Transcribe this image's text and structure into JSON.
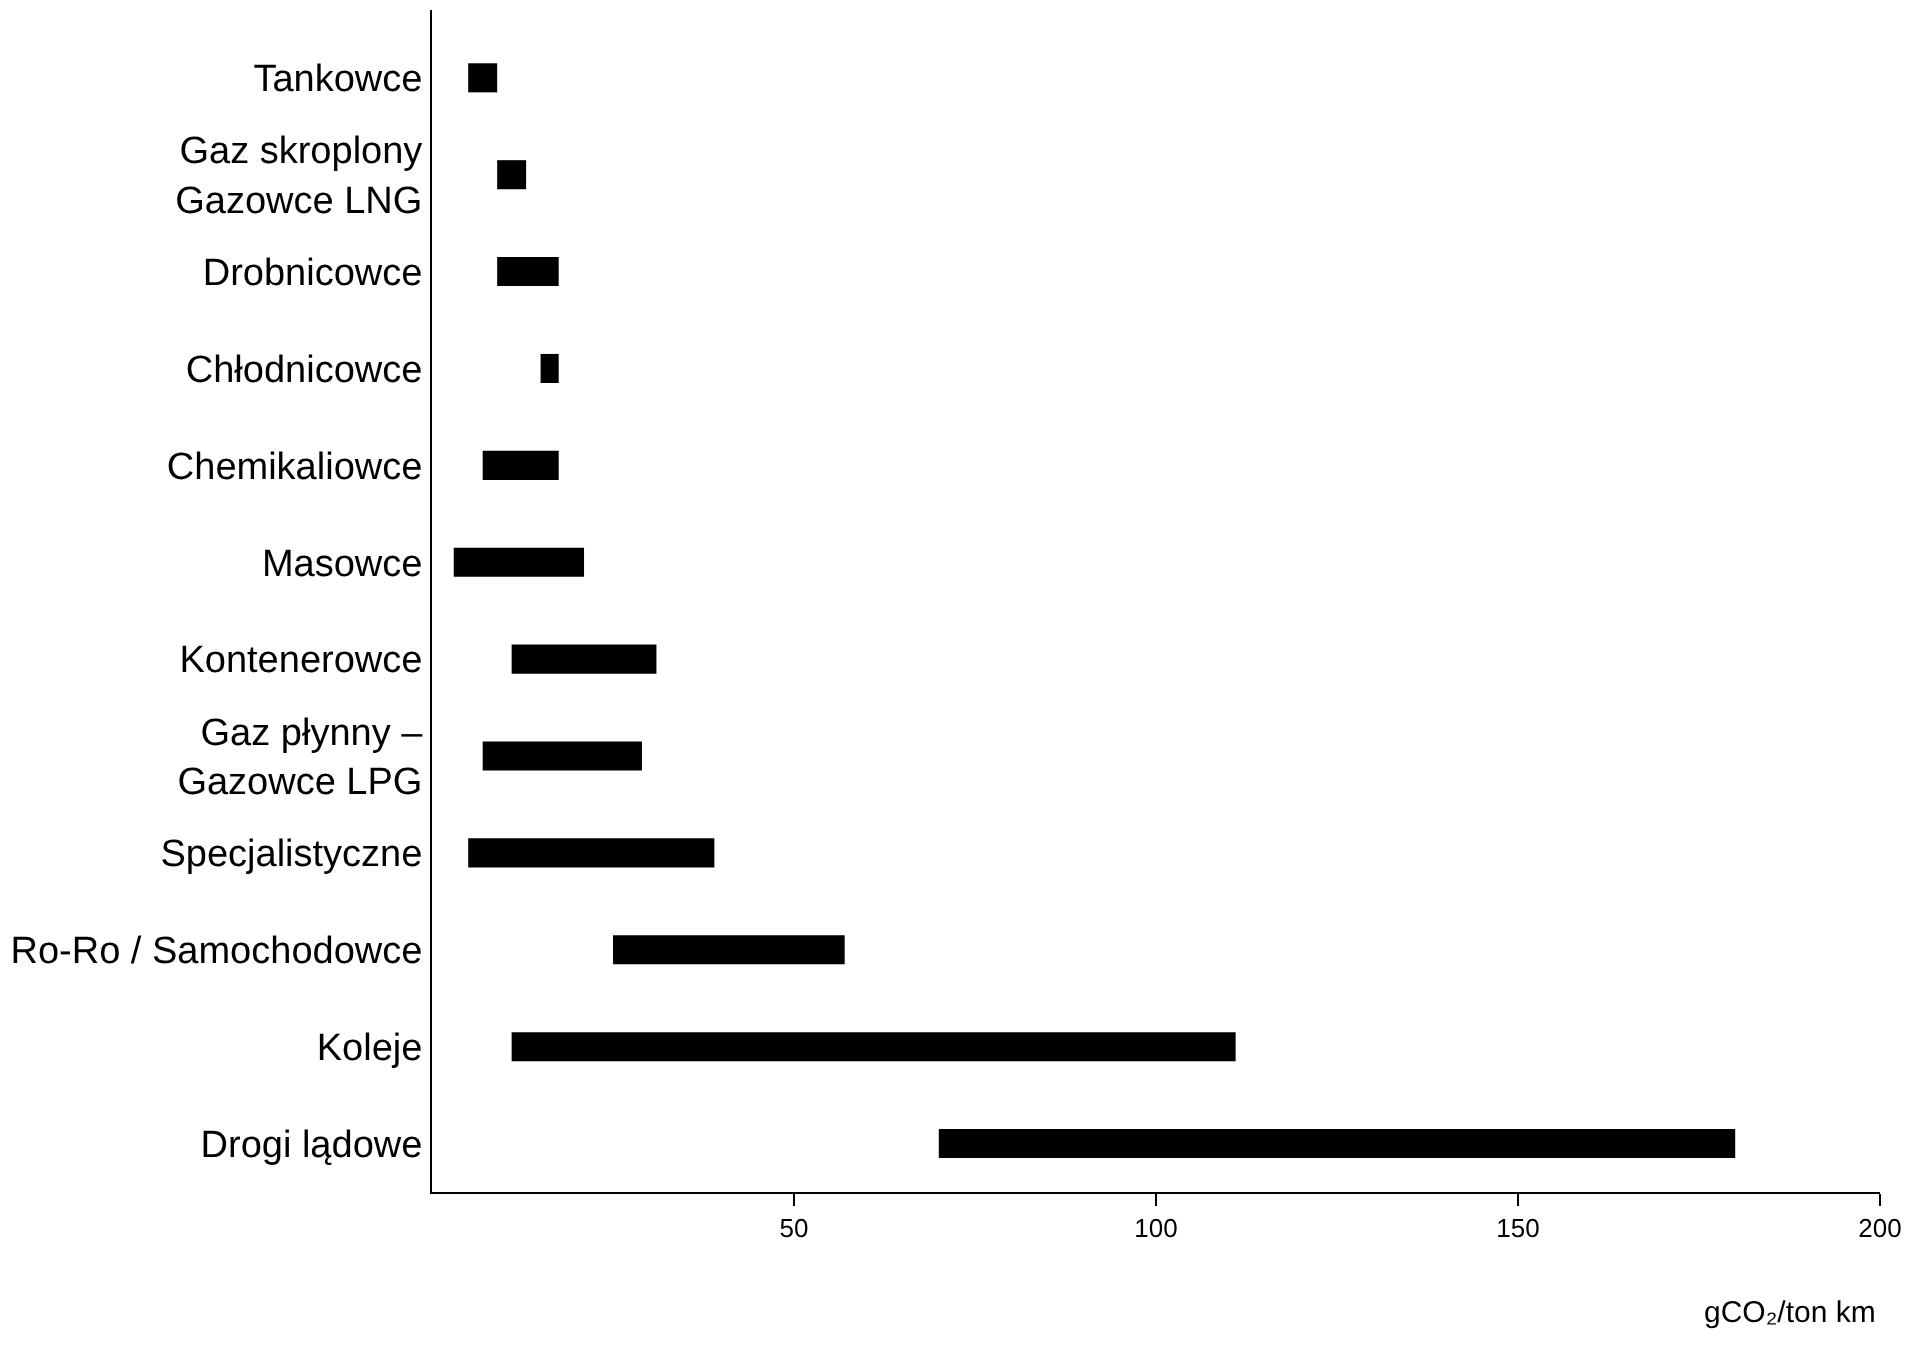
{
  "chart_data": {
    "type": "bar",
    "orientation": "horizontal",
    "xlabel": "gCO₂/ton km",
    "categories": [
      "Tankowce",
      "Gaz skroplony\nGazowce LNG",
      "Drobnicowce",
      "Chłodnicowce",
      "Chemikaliowce",
      "Masowce",
      "Kontenerowce",
      "Gaz płynny –\nGazowce LPG",
      "Specjalistyczne",
      "Ro-Ro / Samochodowce",
      "Koleje",
      "Drogi lądowe"
    ],
    "base": [
      5,
      9,
      9,
      15,
      7,
      3,
      11,
      7,
      5,
      25,
      11,
      70
    ],
    "values": [
      4,
      4,
      8.5,
      2.5,
      10.5,
      18,
      20,
      22,
      34,
      32,
      100,
      110
    ],
    "color": "#000000",
    "xlim": [
      0,
      200
    ],
    "xticks": [
      50,
      100,
      150,
      200
    ]
  }
}
